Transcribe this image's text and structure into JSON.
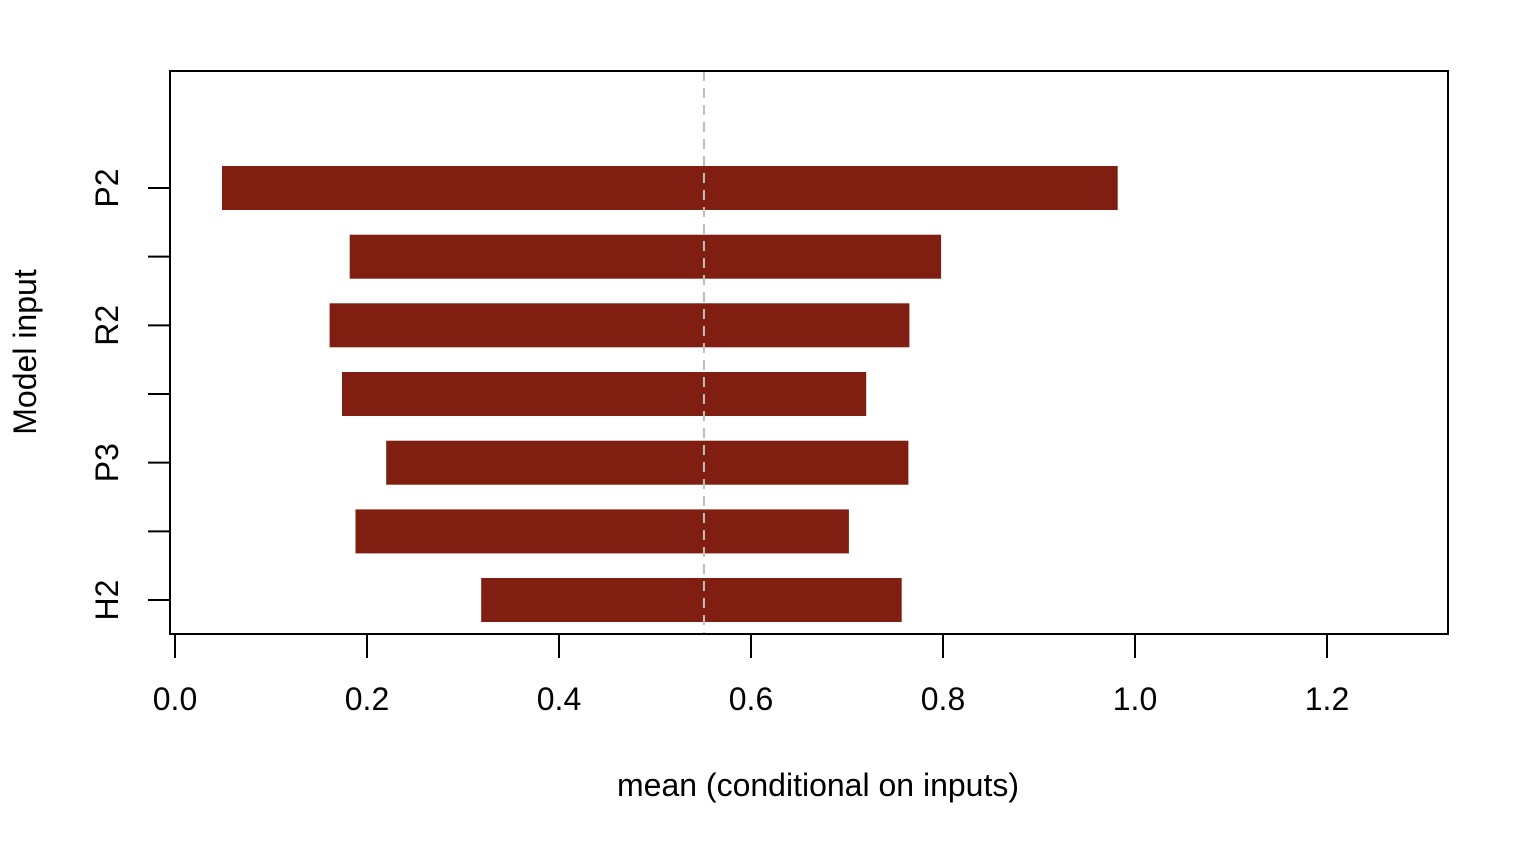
{
  "chart_data": {
    "type": "bar",
    "orientation": "horizontal",
    "title": "",
    "xlabel": "mean (conditional on inputs)",
    "ylabel": "Model input",
    "xlim": [
      0,
      1.32
    ],
    "xticks": [
      0.0,
      0.2,
      0.4,
      0.6,
      0.8,
      1.0,
      1.2
    ],
    "xtick_labels": [
      "0.0",
      "0.2",
      "0.4",
      "0.6",
      "0.8",
      "1.0",
      "1.2"
    ],
    "yticks_count": 7,
    "ytick_labels_shown": [
      "P2",
      "R2",
      "P3",
      "H2"
    ],
    "reference_line": 0.551,
    "bars": [
      {
        "label": "P2",
        "low": 0.049,
        "high": 0.982
      },
      {
        "label": "",
        "low": 0.182,
        "high": 0.798
      },
      {
        "label": "R2",
        "low": 0.161,
        "high": 0.765
      },
      {
        "label": "",
        "low": 0.174,
        "high": 0.72
      },
      {
        "label": "P3",
        "low": 0.22,
        "high": 0.764
      },
      {
        "label": "",
        "low": 0.188,
        "high": 0.702
      },
      {
        "label": "H2",
        "low": 0.319,
        "high": 0.757
      }
    ],
    "colors": {
      "bar": "#801E11",
      "reference_line": "#BEBEBE"
    },
    "grid": false,
    "legend": "none"
  }
}
